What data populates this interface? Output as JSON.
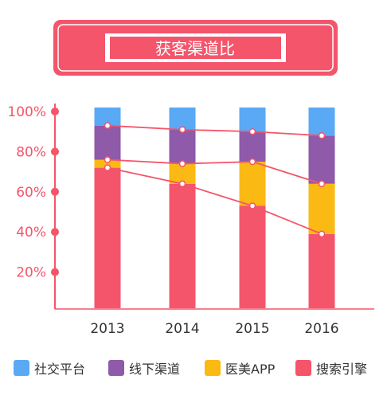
{
  "chart_data": {
    "type": "bar",
    "title": "获客渠道比",
    "stacked": true,
    "categories": [
      "2013",
      "2014",
      "2015",
      "2016"
    ],
    "y_ticks": [
      "20%",
      "40%",
      "60%",
      "80%",
      "100%"
    ],
    "ylim": [
      0,
      100
    ],
    "legend_position": "bottom",
    "series": [
      {
        "name": "搜索引擎",
        "values": [
          70,
          62,
          51,
          37
        ],
        "color": "#f4556b"
      },
      {
        "name": "医美APP",
        "values": [
          4,
          10,
          22,
          25
        ],
        "color": "#fbb914"
      },
      {
        "name": "线下渠道",
        "values": [
          17,
          17,
          15,
          24
        ],
        "color": "#8e5aa9"
      },
      {
        "name": "社交平台",
        "values": [
          9,
          11,
          12,
          14
        ],
        "color": "#5aa9f5"
      }
    ],
    "legend_order": [
      3,
      2,
      1,
      0
    ],
    "trend_lines": true,
    "accent_color": "#f4556b"
  }
}
